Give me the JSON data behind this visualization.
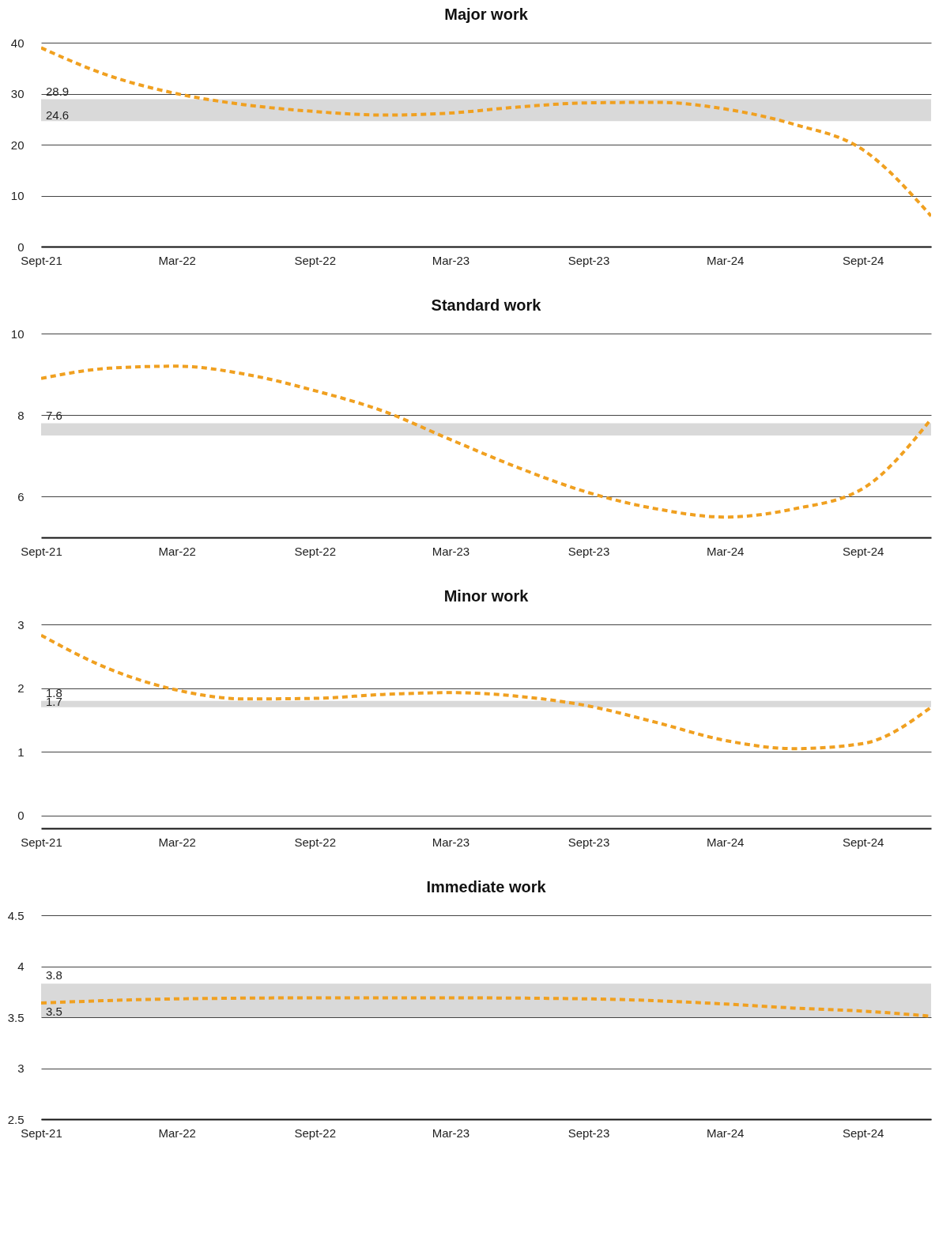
{
  "chart_data": [
    {
      "type": "line",
      "title": "Major work",
      "x": [
        "2021-09",
        "2021-12",
        "2022-03",
        "2022-06",
        "2022-09",
        "2022-12",
        "2023-03",
        "2023-06",
        "2023-09",
        "2023-12",
        "2024-03",
        "2024-06",
        "2024-09",
        "2024-12"
      ],
      "series": [
        {
          "color": "#f0a020",
          "values": [
            39,
            33.5,
            30,
            27.8,
            26.5,
            25.8,
            26.2,
            27.4,
            28.2,
            28.3,
            27,
            24,
            19,
            6
          ]
        }
      ],
      "xlim": [
        "2021-09",
        "2024-12"
      ],
      "xticks": [
        {
          "value": "2021-09",
          "label": "Sept-21"
        },
        {
          "value": "2022-03",
          "label": "Mar-22"
        },
        {
          "value": "2022-09",
          "label": "Sept-22"
        },
        {
          "value": "2023-03",
          "label": "Mar-23"
        },
        {
          "value": "2023-09",
          "label": "Sept-23"
        },
        {
          "value": "2024-03",
          "label": "Mar-24"
        },
        {
          "value": "2024-09",
          "label": "Sept-24"
        }
      ],
      "ylim": [
        0,
        40
      ],
      "yticks": [
        0,
        10,
        20,
        30,
        40
      ],
      "grid": "y",
      "line_style": "dashed",
      "marker": "none",
      "bands": [
        {
          "axis": "y",
          "from": 24.6,
          "to": 28.9,
          "label": "28.9",
          "color": "#d9d9d9"
        }
      ],
      "annotations": [
        {
          "text": "24.6",
          "x": "2021-09",
          "y": 24.6
        }
      ]
    },
    {
      "type": "line",
      "title": "Standard work",
      "x": [
        "2021-09",
        "2021-12",
        "2022-03",
        "2022-06",
        "2022-09",
        "2022-12",
        "2023-03",
        "2023-06",
        "2023-09",
        "2023-12",
        "2024-03",
        "2024-06",
        "2024-09",
        "2024-12"
      ],
      "series": [
        {
          "color": "#f0a020",
          "values": [
            8.9,
            9.15,
            9.2,
            9.0,
            8.6,
            8.1,
            7.4,
            6.7,
            6.1,
            5.7,
            5.5,
            5.7,
            6.2,
            7.9
          ]
        }
      ],
      "xlim": [
        "2021-09",
        "2024-12"
      ],
      "xticks": [
        {
          "value": "2021-09",
          "label": "Sept-21"
        },
        {
          "value": "2022-03",
          "label": "Mar-22"
        },
        {
          "value": "2022-09",
          "label": "Sept-22"
        },
        {
          "value": "2023-03",
          "label": "Mar-23"
        },
        {
          "value": "2023-09",
          "label": "Sept-23"
        },
        {
          "value": "2024-03",
          "label": "Mar-24"
        },
        {
          "value": "2024-09",
          "label": "Sept-24"
        }
      ],
      "ylim": [
        5,
        10
      ],
      "yticks": [
        6,
        8,
        10
      ],
      "grid": "y",
      "line_style": "dashed",
      "marker": "none",
      "bands": [
        {
          "axis": "y",
          "from": 7.5,
          "to": 7.8,
          "label": "7.6",
          "color": "#d9d9d9"
        }
      ]
    },
    {
      "type": "line",
      "title": "Minor work",
      "x": [
        "2021-09",
        "2021-12",
        "2022-03",
        "2022-06",
        "2022-09",
        "2022-12",
        "2023-03",
        "2023-06",
        "2023-09",
        "2023-12",
        "2024-03",
        "2024-06",
        "2024-09",
        "2024-12"
      ],
      "series": [
        {
          "color": "#f0a020",
          "values": [
            2.83,
            2.3,
            1.97,
            1.83,
            1.84,
            1.9,
            1.93,
            1.87,
            1.72,
            1.46,
            1.18,
            1.05,
            1.13,
            1.7
          ]
        }
      ],
      "xlim": [
        "2021-09",
        "2024-12"
      ],
      "xticks": [
        {
          "value": "2021-09",
          "label": "Sept-21"
        },
        {
          "value": "2022-03",
          "label": "Mar-22"
        },
        {
          "value": "2022-09",
          "label": "Sept-22"
        },
        {
          "value": "2023-03",
          "label": "Mar-23"
        },
        {
          "value": "2023-09",
          "label": "Sept-23"
        },
        {
          "value": "2024-03",
          "label": "Mar-24"
        },
        {
          "value": "2024-09",
          "label": "Sept-24"
        }
      ],
      "ylim": [
        -0.2,
        3
      ],
      "yticks": [
        0,
        1,
        2,
        3
      ],
      "grid": "y",
      "line_style": "dashed",
      "marker": "none",
      "bands": [
        {
          "axis": "y",
          "from": 1.7,
          "to": 1.8,
          "label": "1.8",
          "color": "#d9d9d9"
        }
      ],
      "annotations": [
        {
          "text": "1.7",
          "x": "2021-09",
          "y": 1.7
        }
      ]
    },
    {
      "type": "line",
      "title": "Immediate work",
      "x": [
        "2021-09",
        "2022-03",
        "2022-09",
        "2023-03",
        "2023-09",
        "2024-03",
        "2024-06",
        "2024-09",
        "2024-12"
      ],
      "series": [
        {
          "color": "#f0a020",
          "values": [
            3.64,
            3.68,
            3.69,
            3.69,
            3.68,
            3.63,
            3.59,
            3.56,
            3.51
          ]
        }
      ],
      "xlim": [
        "2021-09",
        "2024-12"
      ],
      "xticks": [
        {
          "value": "2021-09",
          "label": "Sept-21"
        },
        {
          "value": "2022-03",
          "label": "Mar-22"
        },
        {
          "value": "2022-09",
          "label": "Sept-22"
        },
        {
          "value": "2023-03",
          "label": "Mar-23"
        },
        {
          "value": "2023-09",
          "label": "Sept-23"
        },
        {
          "value": "2024-03",
          "label": "Mar-24"
        },
        {
          "value": "2024-09",
          "label": "Sept-24"
        }
      ],
      "ylim": [
        2.5,
        4.5
      ],
      "yticks": [
        2.5,
        3,
        3.5,
        4,
        4.5
      ],
      "grid": "y",
      "line_style": "dashed",
      "marker": "none",
      "bands": [
        {
          "axis": "y",
          "from": 3.5,
          "to": 3.83,
          "label": "3.8",
          "color": "#d9d9d9"
        }
      ],
      "annotations": [
        {
          "text": "3.5",
          "x": "2021-09",
          "y": 3.5
        }
      ]
    }
  ]
}
